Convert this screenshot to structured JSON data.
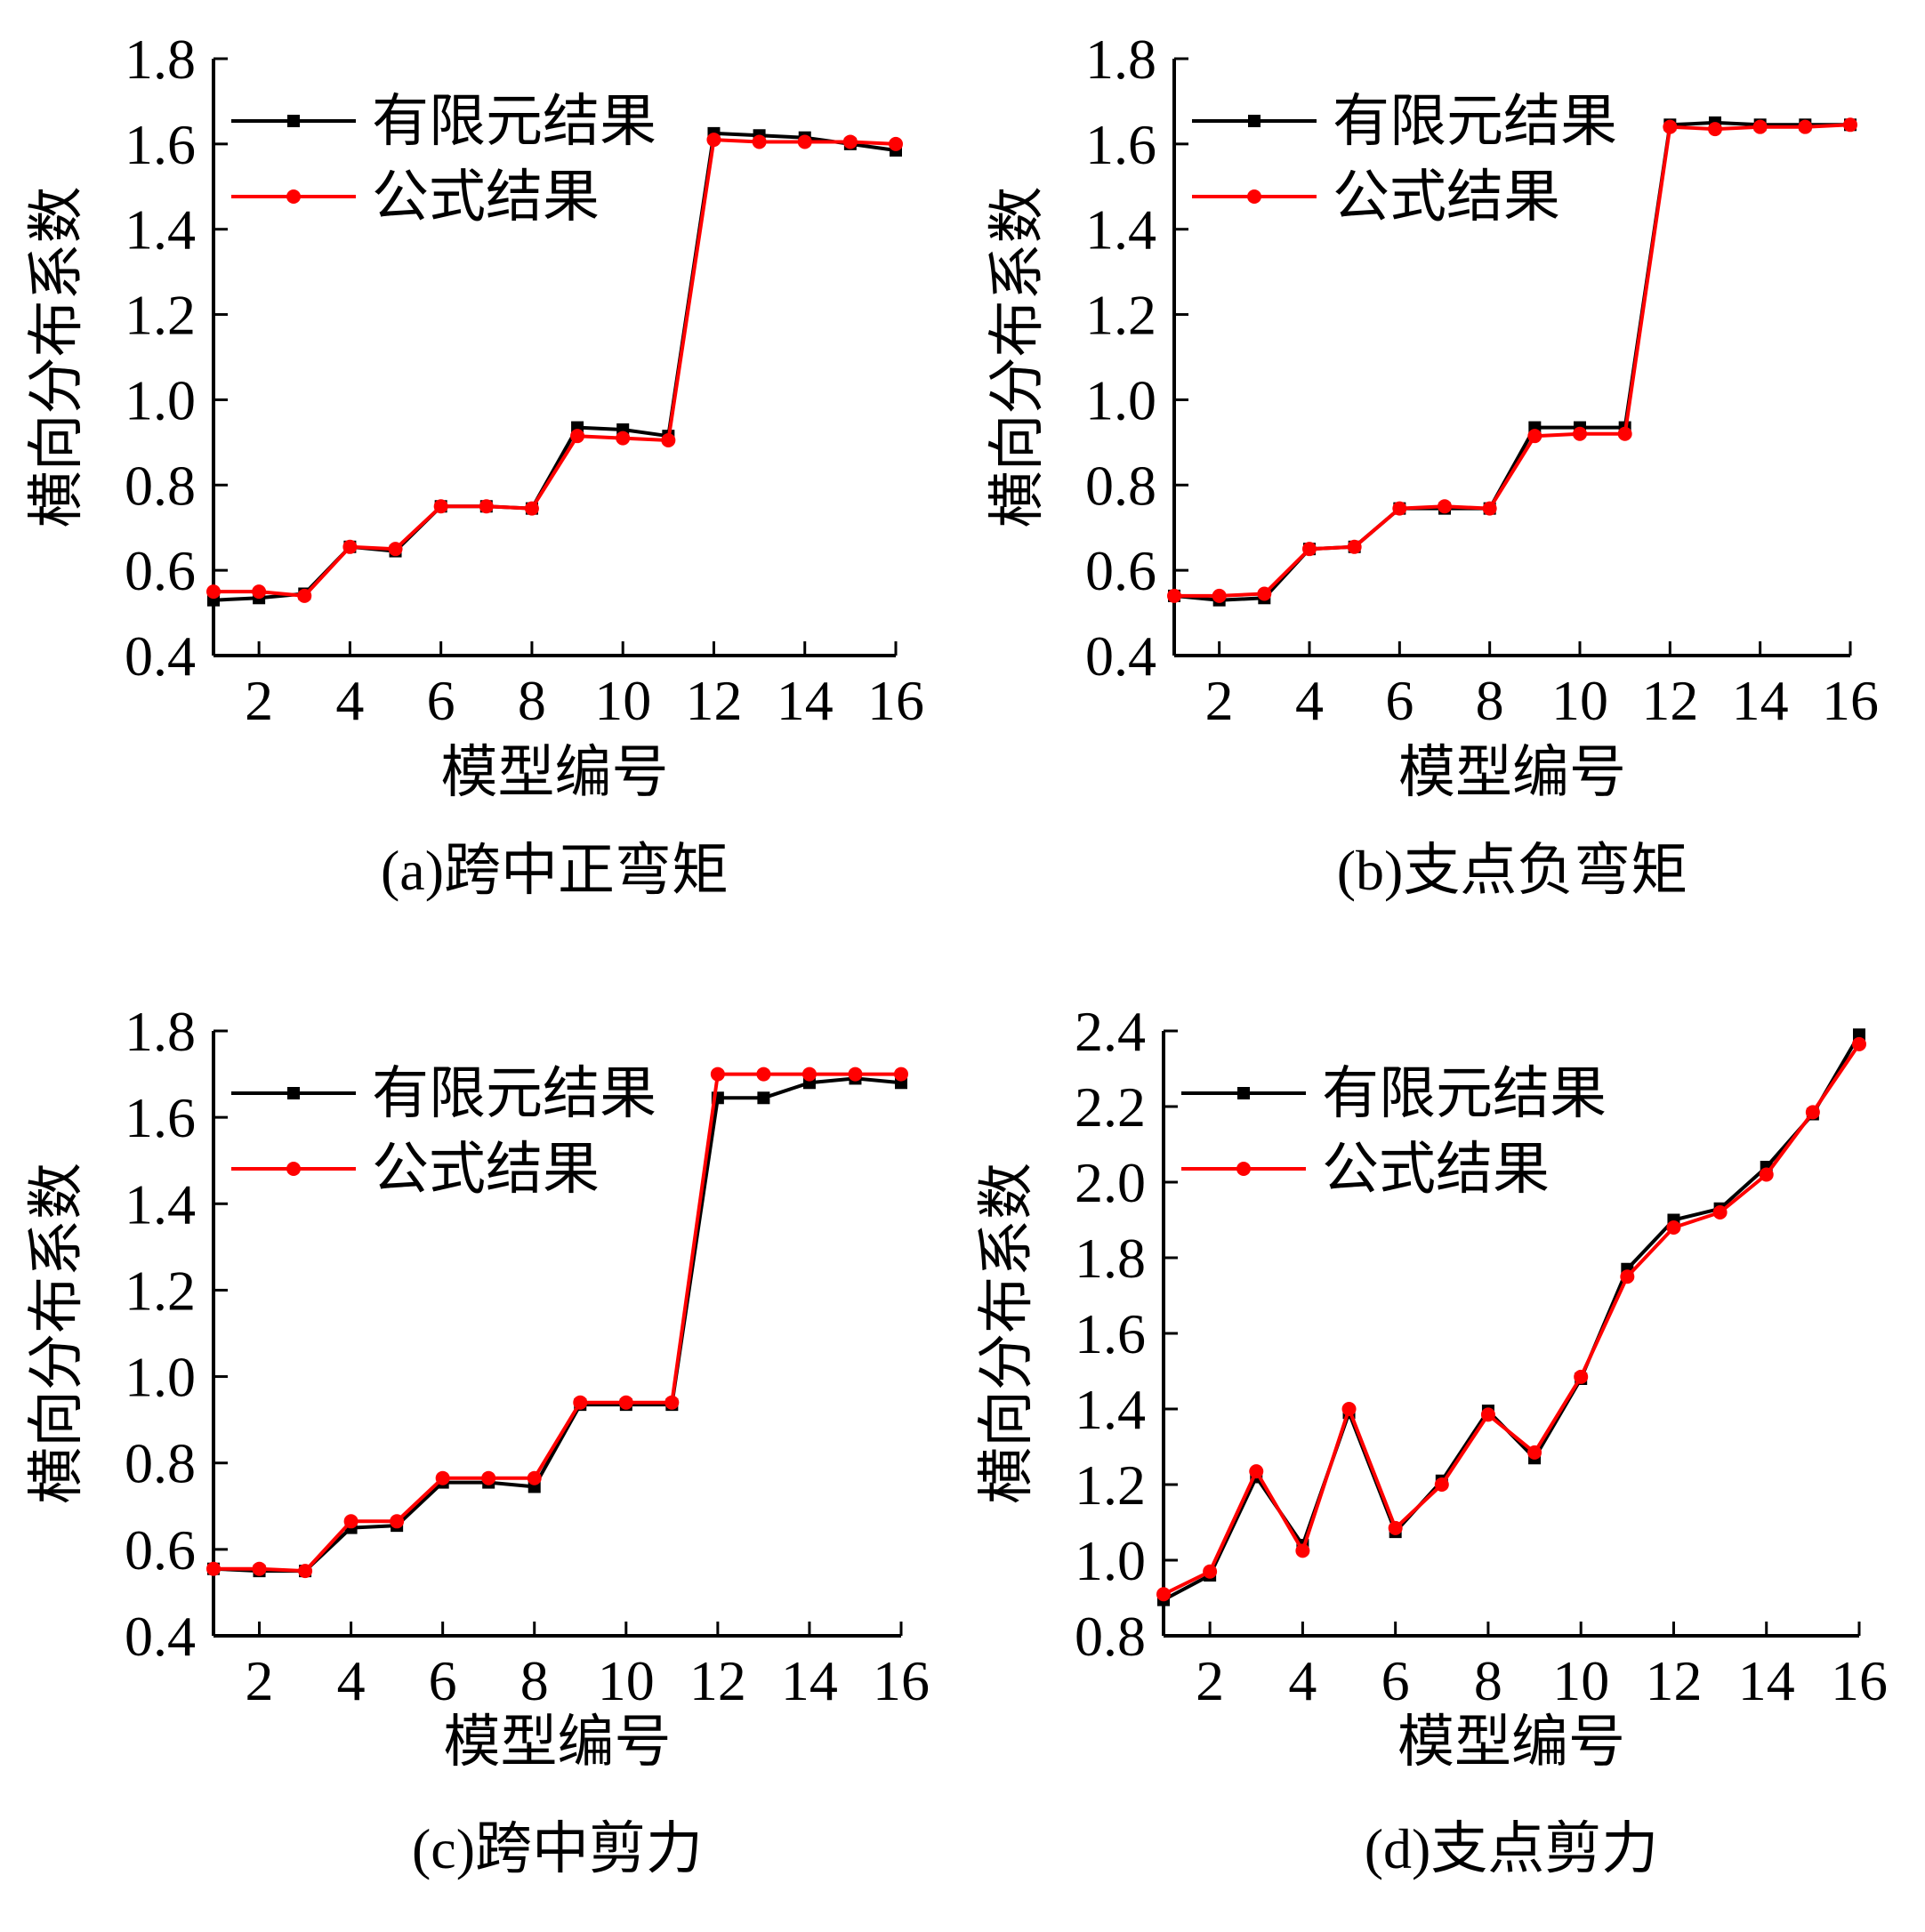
{
  "figure": {
    "series_colors": {
      "fem": "#000000",
      "formula": "#ff0000"
    }
  },
  "chart_data": [
    {
      "id": "a",
      "type": "line",
      "caption": "(a)跨中正弯矩",
      "xlabel": "模型编号",
      "ylabel": "横向分布系数",
      "xlim": [
        1,
        16
      ],
      "ylim": [
        0.4,
        1.8
      ],
      "x_ticks": [
        2,
        4,
        6,
        8,
        10,
        12,
        14,
        16
      ],
      "y_ticks": [
        "0.4",
        "0.6",
        "0.8",
        "1.0",
        "1.2",
        "1.4",
        "1.6",
        "1.8"
      ],
      "legend_position": "top-left",
      "x": [
        1,
        2,
        3,
        4,
        5,
        6,
        7,
        8,
        9,
        10,
        11,
        12,
        13,
        14,
        15,
        16
      ],
      "series": [
        {
          "name": "有限元结果",
          "key": "fem",
          "marker": "square",
          "values": [
            0.53,
            0.535,
            0.545,
            0.655,
            0.645,
            0.75,
            0.75,
            0.745,
            0.935,
            0.93,
            0.915,
            1.625,
            1.62,
            1.615,
            1.6,
            1.585
          ]
        },
        {
          "name": "公式结果",
          "key": "formula",
          "marker": "circle",
          "values": [
            0.55,
            0.55,
            0.54,
            0.655,
            0.65,
            0.75,
            0.75,
            0.745,
            0.915,
            0.91,
            0.905,
            1.61,
            1.605,
            1.605,
            1.605,
            1.6
          ]
        }
      ]
    },
    {
      "id": "b",
      "type": "line",
      "caption": "(b)支点负弯矩",
      "xlabel": "模型编号",
      "ylabel": "横向分布系数",
      "xlim": [
        1,
        16
      ],
      "ylim": [
        0.4,
        1.8
      ],
      "x_ticks": [
        2,
        4,
        6,
        8,
        10,
        12,
        14,
        16
      ],
      "y_ticks": [
        "0.4",
        "0.6",
        "0.8",
        "1.0",
        "1.2",
        "1.4",
        "1.6",
        "1.8"
      ],
      "legend_position": "top-left",
      "x": [
        1,
        2,
        3,
        4,
        5,
        6,
        7,
        8,
        9,
        10,
        11,
        12,
        13,
        14,
        15,
        16
      ],
      "series": [
        {
          "name": "有限元结果",
          "key": "fem",
          "marker": "square",
          "values": [
            0.54,
            0.53,
            0.535,
            0.65,
            0.655,
            0.745,
            0.745,
            0.745,
            0.935,
            0.935,
            0.935,
            1.645,
            1.65,
            1.645,
            1.645,
            1.645
          ]
        },
        {
          "name": "公式结果",
          "key": "formula",
          "marker": "circle",
          "values": [
            0.54,
            0.54,
            0.545,
            0.65,
            0.655,
            0.745,
            0.75,
            0.745,
            0.915,
            0.92,
            0.92,
            1.64,
            1.635,
            1.64,
            1.64,
            1.645
          ]
        }
      ]
    },
    {
      "id": "c",
      "type": "line",
      "caption": "(c)跨中剪力",
      "xlabel": "模型编号",
      "ylabel": "横向分布系数",
      "xlim": [
        1,
        16
      ],
      "ylim": [
        0.4,
        1.8
      ],
      "x_ticks": [
        2,
        4,
        6,
        8,
        10,
        12,
        14,
        16
      ],
      "y_ticks": [
        "0.4",
        "0.6",
        "0.8",
        "1.0",
        "1.2",
        "1.4",
        "1.6",
        "1.8"
      ],
      "legend_position": "top-left",
      "x": [
        1,
        2,
        3,
        4,
        5,
        6,
        7,
        8,
        9,
        10,
        11,
        12,
        13,
        14,
        15,
        16
      ],
      "series": [
        {
          "name": "有限元结果",
          "key": "fem",
          "marker": "square",
          "values": [
            0.555,
            0.55,
            0.55,
            0.65,
            0.655,
            0.755,
            0.755,
            0.745,
            0.935,
            0.935,
            0.935,
            1.645,
            1.645,
            1.68,
            1.69,
            1.68
          ]
        },
        {
          "name": "公式结果",
          "key": "formula",
          "marker": "circle",
          "values": [
            0.555,
            0.555,
            0.55,
            0.665,
            0.665,
            0.765,
            0.765,
            0.765,
            0.94,
            0.94,
            0.94,
            1.7,
            1.7,
            1.7,
            1.7,
            1.7
          ]
        }
      ]
    },
    {
      "id": "d",
      "type": "line",
      "caption": "(d)支点剪力",
      "xlabel": "模型编号",
      "ylabel": "横向分布系数",
      "xlim": [
        1,
        16
      ],
      "ylim": [
        0.8,
        2.4
      ],
      "x_ticks": [
        2,
        4,
        6,
        8,
        10,
        12,
        14,
        16
      ],
      "y_ticks": [
        "0.8",
        "1.0",
        "1.2",
        "1.4",
        "1.6",
        "1.8",
        "2.0",
        "2.2",
        "2.4"
      ],
      "legend_position": "top-left",
      "x": [
        1,
        2,
        3,
        4,
        5,
        6,
        7,
        8,
        9,
        10,
        11,
        12,
        13,
        14,
        15,
        16
      ],
      "series": [
        {
          "name": "有限元结果",
          "key": "fem",
          "marker": "square",
          "values": [
            0.895,
            0.96,
            1.22,
            1.04,
            1.39,
            1.075,
            1.21,
            1.395,
            1.27,
            1.48,
            1.77,
            1.9,
            1.93,
            2.04,
            2.18,
            2.39
          ]
        },
        {
          "name": "公式结果",
          "key": "formula",
          "marker": "circle",
          "values": [
            0.91,
            0.97,
            1.235,
            1.025,
            1.4,
            1.085,
            1.2,
            1.385,
            1.285,
            1.485,
            1.75,
            1.88,
            1.92,
            2.02,
            2.185,
            2.365
          ]
        }
      ]
    }
  ]
}
